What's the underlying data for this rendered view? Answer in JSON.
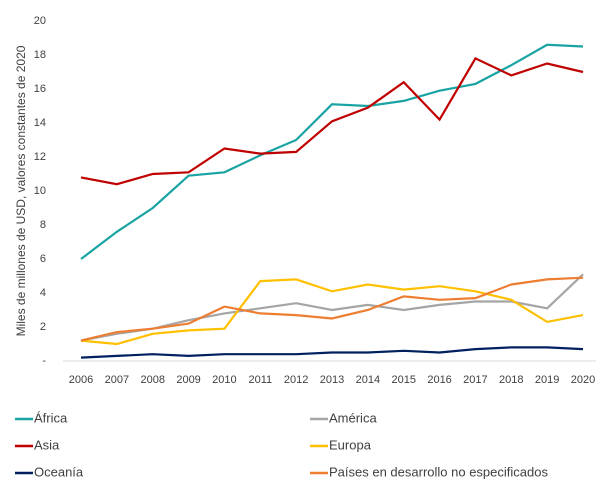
{
  "chart_data": {
    "type": "line",
    "y_label": "Miles de millones de USD, valores constantes de 2020",
    "categories": [
      "2006",
      "2007",
      "2008",
      "2009",
      "2010",
      "2011",
      "2012",
      "2013",
      "2014",
      "2015",
      "2016",
      "2017",
      "2018",
      "2019",
      "2020"
    ],
    "series": [
      {
        "name": "África",
        "color": "#1aa3a3",
        "values": [
          6.0,
          7.6,
          9.0,
          10.9,
          11.1,
          12.1,
          13.0,
          15.1,
          15.0,
          15.3,
          15.9,
          16.3,
          17.4,
          18.6,
          18.5
        ]
      },
      {
        "name": "América",
        "color": "#a5a5a5",
        "values": [
          1.2,
          1.6,
          1.9,
          2.4,
          2.8,
          3.1,
          3.4,
          3.0,
          3.3,
          3.0,
          3.3,
          3.5,
          3.5,
          3.1,
          5.1
        ]
      },
      {
        "name": "Asia",
        "color": "#c00000",
        "values": [
          10.8,
          10.4,
          11.0,
          11.1,
          12.5,
          12.2,
          12.3,
          14.1,
          14.9,
          16.4,
          14.2,
          17.8,
          16.8,
          17.5,
          17.0
        ]
      },
      {
        "name": "Europa",
        "color": "#ffc000",
        "values": [
          1.2,
          1.0,
          1.6,
          1.8,
          1.9,
          4.7,
          4.8,
          4.1,
          4.5,
          4.2,
          4.4,
          4.1,
          3.6,
          2.3,
          2.7
        ]
      },
      {
        "name": "Oceanía",
        "color": "#002060",
        "values": [
          0.2,
          0.3,
          0.4,
          0.3,
          0.4,
          0.4,
          0.4,
          0.5,
          0.5,
          0.6,
          0.5,
          0.7,
          0.8,
          0.8,
          0.7
        ]
      },
      {
        "name": "Países en desarrollo no especificados",
        "color": "#ed7d31",
        "values": [
          1.2,
          1.7,
          1.9,
          2.2,
          3.2,
          2.8,
          2.7,
          2.5,
          3.0,
          3.8,
          3.6,
          3.7,
          4.5,
          4.8,
          4.9
        ]
      }
    ],
    "ylim": [
      0,
      20
    ],
    "yticks": [
      {
        "value": 0,
        "label": "-"
      },
      2,
      4,
      6,
      8,
      10,
      12,
      14,
      16,
      18,
      20
    ],
    "grid": false
  }
}
